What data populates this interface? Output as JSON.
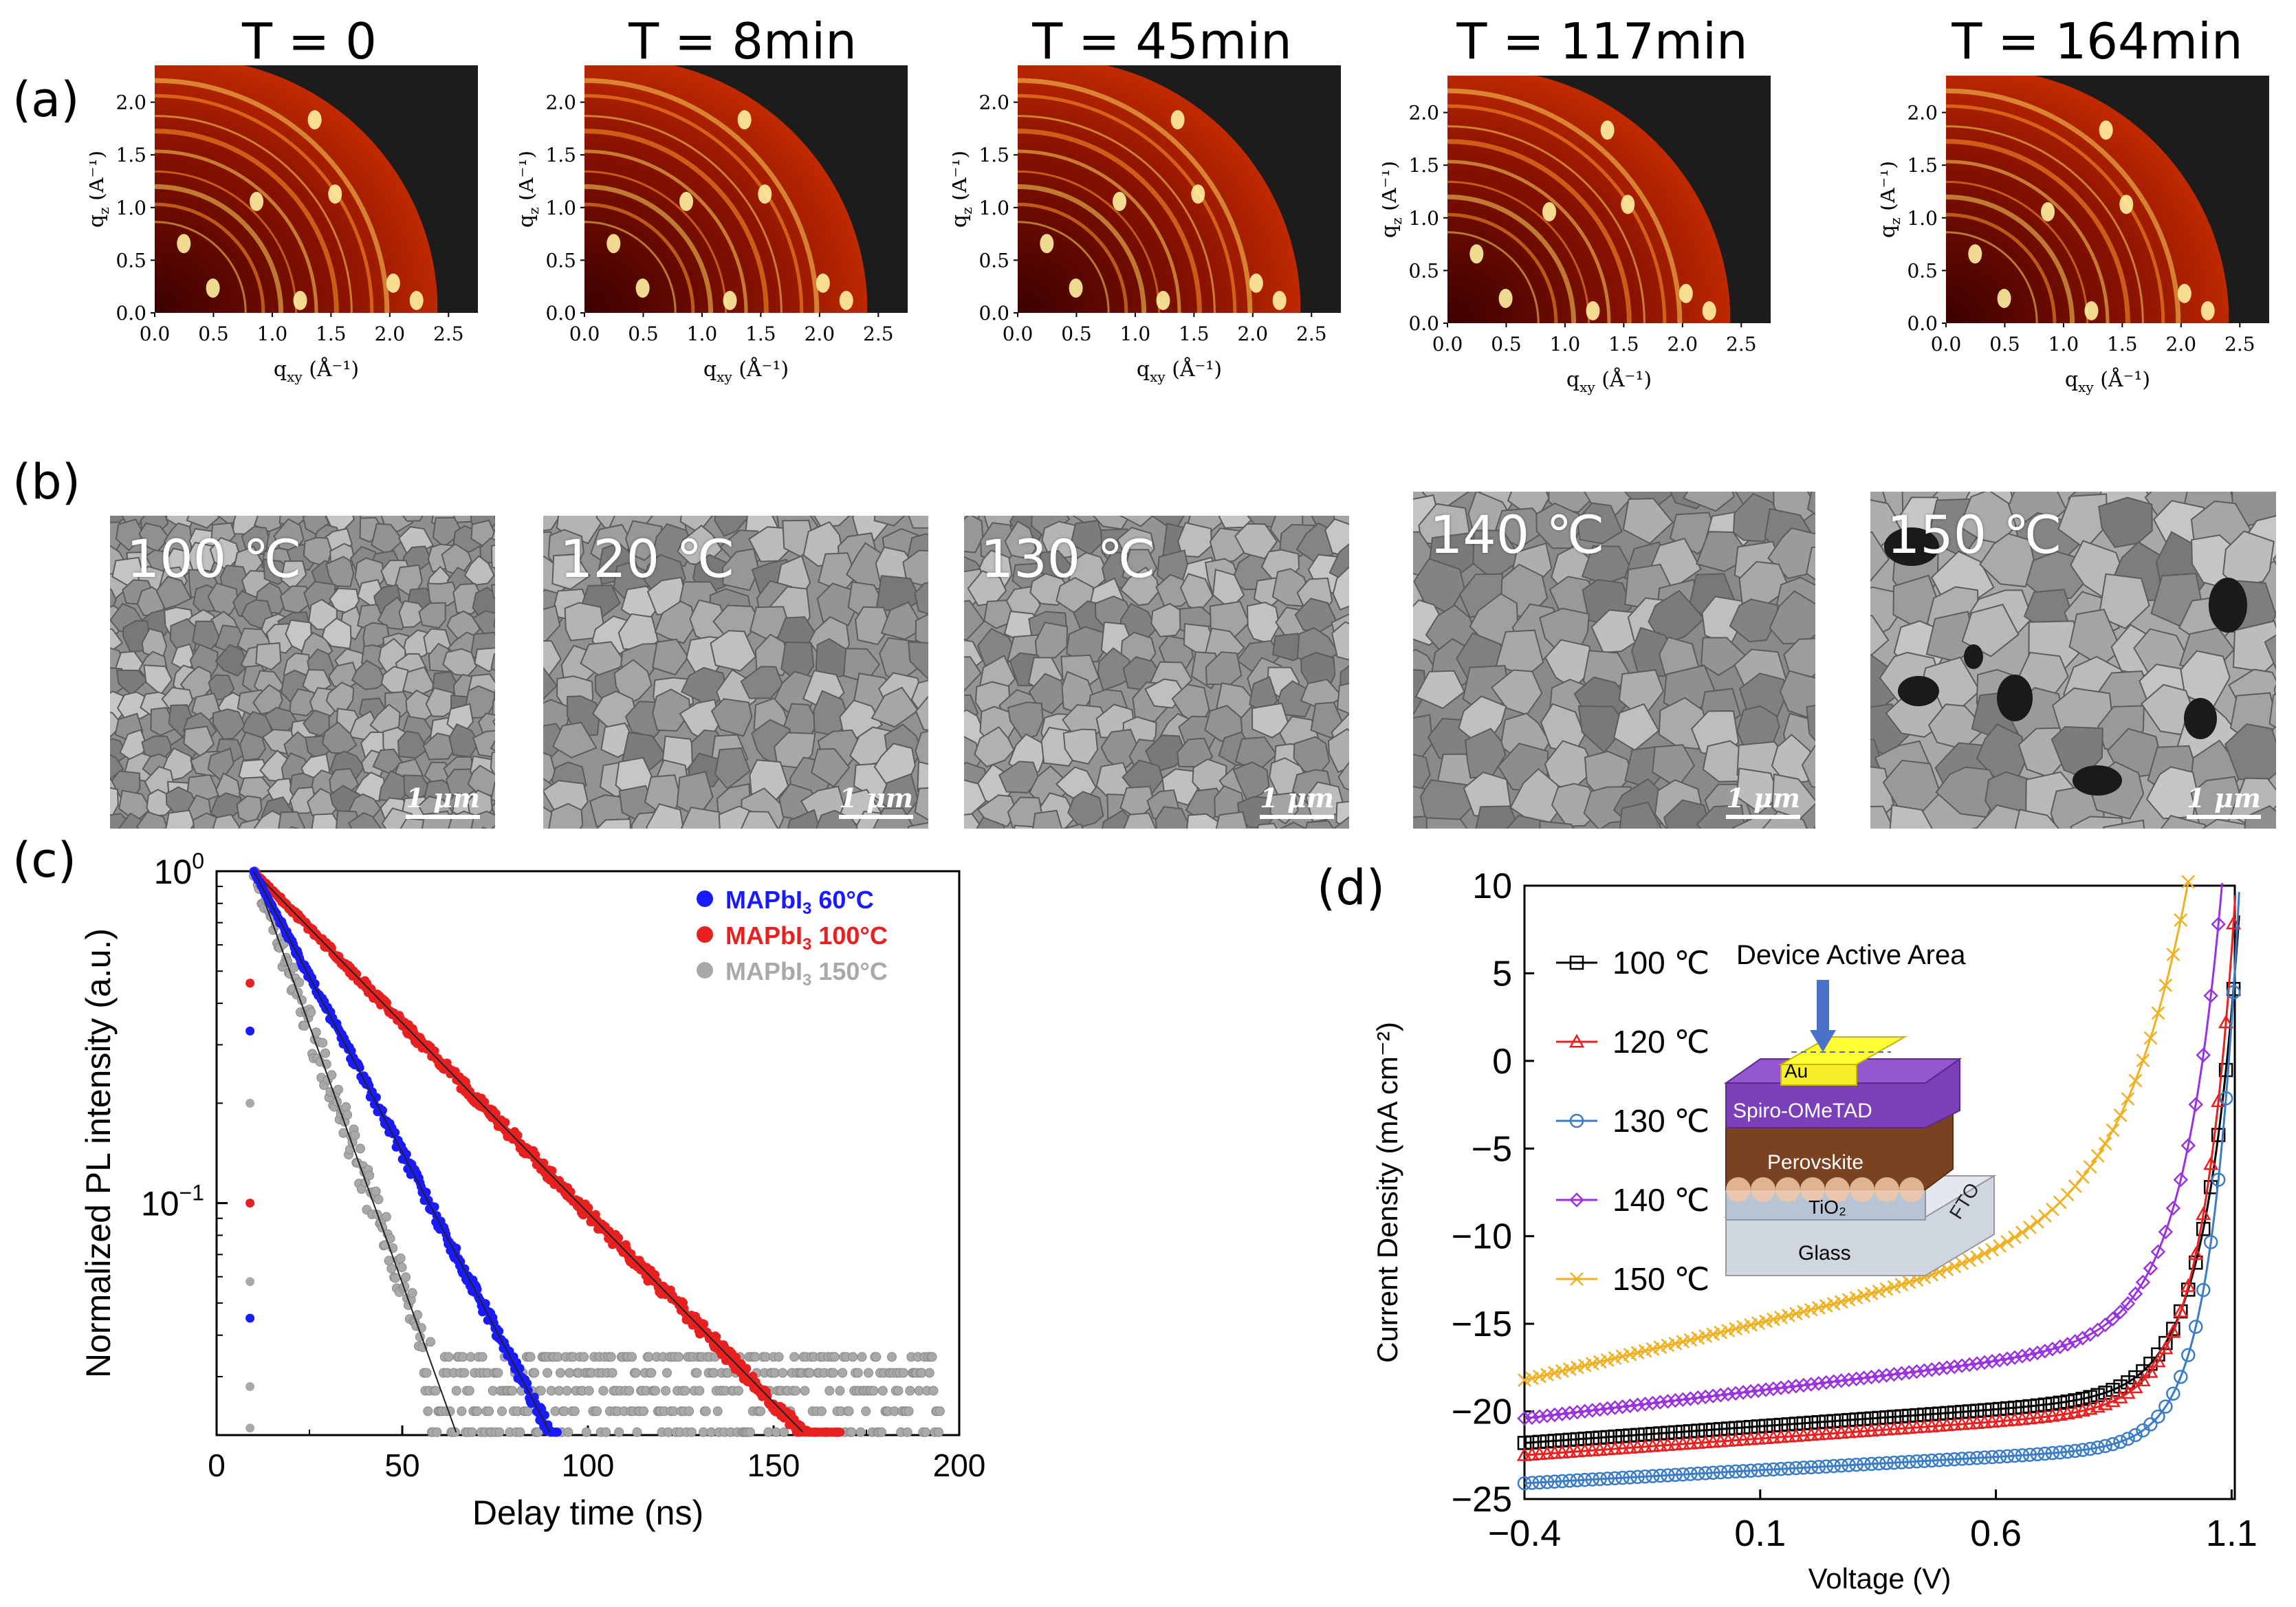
{
  "panel_labels": {
    "a": "(a)",
    "b": "(b)",
    "c": "(c)",
    "d": "(d)"
  },
  "giwaxs": {
    "times": [
      "T = 0",
      "T = 8min",
      "T = 45min",
      "T = 117min",
      "T = 164min"
    ],
    "xlabel": "q",
    "xlabel_sub": "xy",
    "xlabel_unit": " (Å⁻¹)",
    "ylabel": "q",
    "ylabel_sub": "z",
    "ylabel_unit": " (Å⁻¹)",
    "xticks": [
      "0.0",
      "0.5",
      "1.0",
      "1.5",
      "2.0",
      "2.5"
    ],
    "yticks": [
      "0.0",
      "0.5",
      "1.0",
      "1.5",
      "2.0"
    ]
  },
  "sem": {
    "temps": [
      "100 ℃",
      "120 ℃",
      "130 ℃",
      "140 ℃",
      "150 ℃"
    ],
    "scale": "1 μm"
  },
  "chart_data": [
    {
      "type": "scatter",
      "panel": "c",
      "xlabel": "Delay time (ns)",
      "ylabel": "Normalized PL intensity (a.u.)",
      "xlim": [
        0,
        200
      ],
      "ylim_log": [
        0.02,
        1.0
      ],
      "yscale": "log",
      "xticks": [
        "0",
        "50",
        "100",
        "150",
        "200"
      ],
      "yticks": [
        {
          "base": "10",
          "exp": "0",
          "value": 1.0
        },
        {
          "base": "10",
          "exp": "−1",
          "value": 0.1
        }
      ],
      "legend": [
        {
          "name": "MAPbI",
          "sub": "3",
          "suffix": " 60°C",
          "color": "#1a1aff"
        },
        {
          "name": "MAPbI",
          "sub": "3",
          "suffix": " 100°C",
          "color": "#e82020"
        },
        {
          "name": "MAPbI",
          "sub": "3",
          "suffix": " 150°C",
          "color": "#a9a9a9"
        }
      ],
      "series": [
        {
          "name": "MAPbI3 60°C",
          "tau_ns": 20.5,
          "t0": 10,
          "t_end": 92,
          "color": "#1a1aff"
        },
        {
          "name": "MAPbI3 100°C",
          "tau_ns": 38,
          "t0": 10,
          "t_end": 168,
          "color": "#e82020"
        },
        {
          "name": "MAPbI3 150°C",
          "tau_ns": 14,
          "t0": 10,
          "t_end": 195,
          "color": "#a9a9a9"
        }
      ]
    },
    {
      "type": "line",
      "panel": "d",
      "xlabel": "Voltage (V)",
      "ylabel": "Current Density (mA cm⁻²)",
      "xlim": [
        -0.4,
        1.1
      ],
      "ylim": [
        -25,
        10
      ],
      "xticks": [
        "−0.4",
        "0.1",
        "0.6",
        "1.1"
      ],
      "yticks": [
        "10",
        "5",
        "0",
        "−5",
        "−10",
        "−15",
        "−20",
        "−25"
      ],
      "series": [
        {
          "name": "100 ℃",
          "color": "#000000",
          "marker": "square",
          "jsc": -21.8,
          "voc": 1.1,
          "slope": 1.9,
          "vt": 0.072
        },
        {
          "name": "120 ℃",
          "color": "#e82020",
          "marker": "triangle",
          "jsc": -22.5,
          "voc": 1.09,
          "slope": 1.9,
          "vt": 0.07
        },
        {
          "name": "130 ℃",
          "color": "#3a7cc6",
          "marker": "circle",
          "jsc": -24.1,
          "voc": 1.1,
          "slope": 1.5,
          "vt": 0.06
        },
        {
          "name": "140 ℃",
          "color": "#9a32e0",
          "marker": "diamond",
          "jsc": -20.4,
          "voc": 1.06,
          "slope": 3.2,
          "vt": 0.085
        },
        {
          "name": "150 ℃",
          "color": "#f0b020",
          "marker": "x",
          "jsc": -18.2,
          "voc": 1.0,
          "slope": 6.5,
          "vt": 0.14
        }
      ],
      "inset": {
        "title": "Device Active Area",
        "layers": [
          "Au",
          "Spiro-OMeTAD",
          "Perovskite",
          "TiO₂",
          "Glass"
        ],
        "side_label": "FTO"
      }
    }
  ]
}
